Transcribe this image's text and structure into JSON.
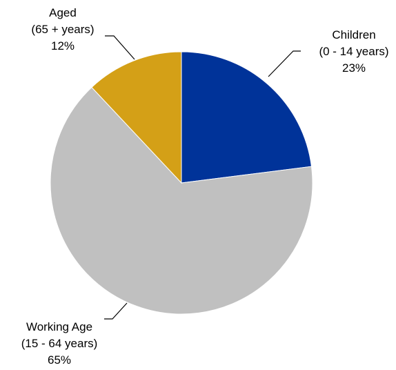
{
  "chart_data": {
    "type": "pie",
    "title": "",
    "start_angle_deg": 0,
    "direction": "clockwise",
    "legend": "none",
    "slices": [
      {
        "label": "Children",
        "range": "(0 - 14 years)",
        "percent_label": "23%",
        "value": 23,
        "color": "#003399"
      },
      {
        "label": "Working Age",
        "range": "(15 - 64 years)",
        "percent_label": "65%",
        "value": 65,
        "color": "#C0C0C0"
      },
      {
        "label": "Aged",
        "range": "(65 + years)",
        "percent_label": "12%",
        "value": 12,
        "color": "#D4A017"
      }
    ],
    "slice_border_color": "#FFFFFF"
  }
}
